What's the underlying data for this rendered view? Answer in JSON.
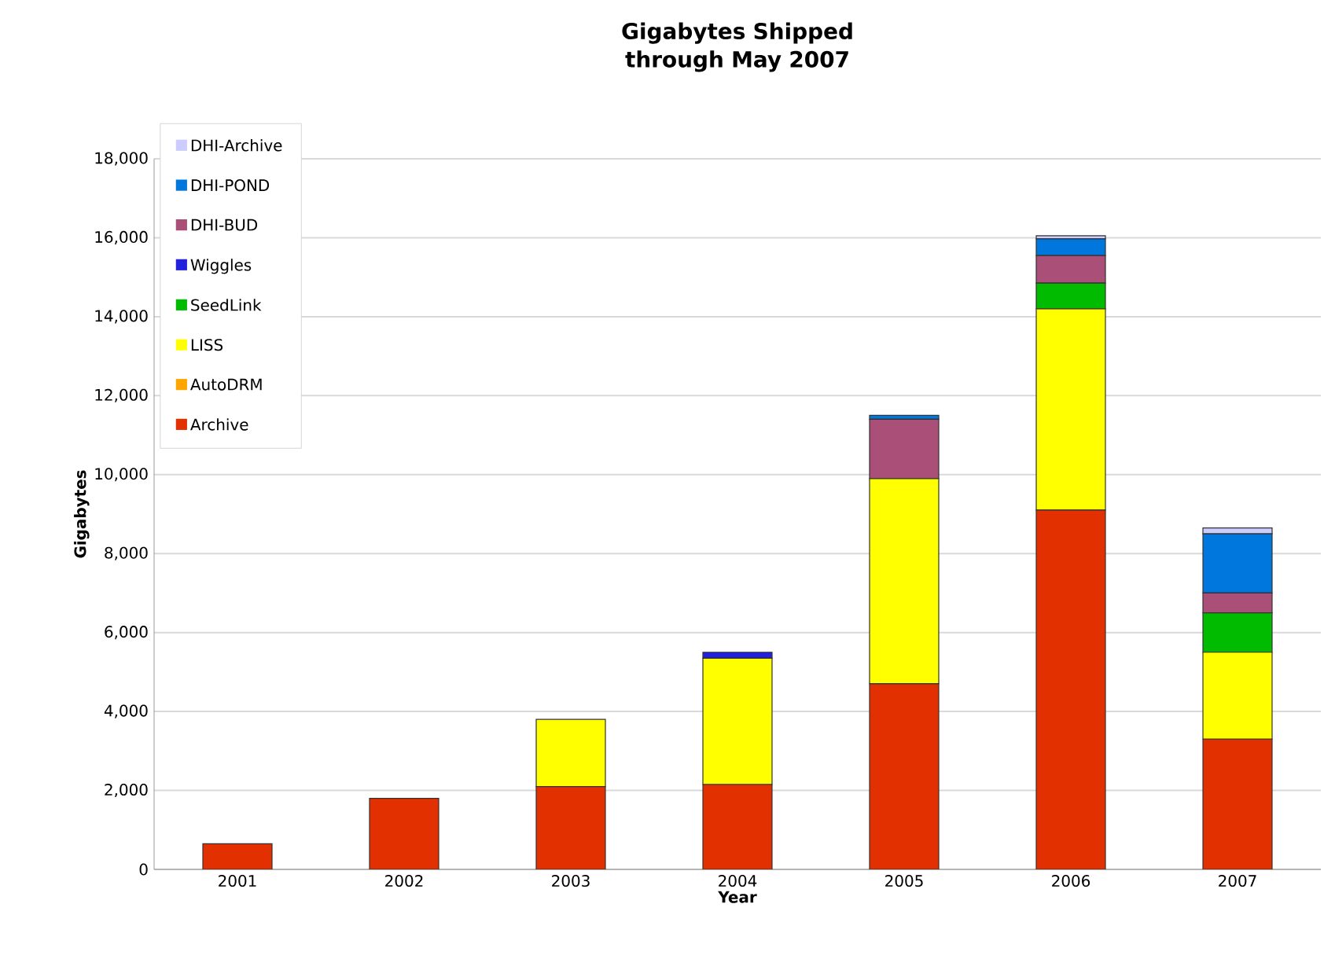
{
  "chart_data": {
    "type": "bar",
    "stacked": true,
    "title": "Gigabytes Shipped through May 2007",
    "xlabel": "Year",
    "ylabel": "Gigabytes",
    "categories": [
      "2001",
      "2002",
      "2003",
      "2004",
      "2005",
      "2006",
      "2007"
    ],
    "series": [
      {
        "name": "Archive",
        "color": "#e33000",
        "values": [
          650,
          1800,
          2100,
          2150,
          4700,
          9100,
          3300
        ]
      },
      {
        "name": "AutoDRM",
        "color": "#ffa500",
        "values": [
          0,
          0,
          0,
          0,
          0,
          0,
          0
        ]
      },
      {
        "name": "LISS",
        "color": "#ffff00",
        "values": [
          0,
          0,
          1700,
          3200,
          5200,
          5100,
          2200
        ]
      },
      {
        "name": "SeedLink",
        "color": "#00bb00",
        "values": [
          0,
          0,
          0,
          0,
          0,
          650,
          1000
        ]
      },
      {
        "name": "Wiggles",
        "color": "#2222dd",
        "values": [
          0,
          0,
          0,
          150,
          0,
          0,
          0
        ]
      },
      {
        "name": "DHI-BUD",
        "color": "#aa4f77",
        "values": [
          0,
          0,
          0,
          0,
          1500,
          700,
          500
        ]
      },
      {
        "name": "DHI-POND",
        "color": "#0077dd",
        "values": [
          0,
          0,
          0,
          0,
          100,
          420,
          1500
        ]
      },
      {
        "name": "DHI-Archive",
        "color": "#ccccff",
        "values": [
          0,
          0,
          0,
          0,
          0,
          80,
          150
        ]
      }
    ],
    "ylim": [
      0,
      18000
    ],
    "yticks": [
      0,
      {
        "value": 2000,
        "label": "2,000"
      },
      {
        "value": 4000,
        "label": "4,000"
      },
      {
        "value": 6000,
        "label": "6,000"
      },
      {
        "value": 8000,
        "label": "8,000"
      },
      {
        "value": 10000,
        "label": "10,000"
      },
      {
        "value": 12000,
        "label": "12,000"
      },
      {
        "value": 14000,
        "label": "14,000"
      },
      {
        "value": 16000,
        "label": "16,000"
      },
      {
        "value": 18000,
        "label": "18,000"
      }
    ],
    "grid": "y",
    "legend": "top left"
  }
}
